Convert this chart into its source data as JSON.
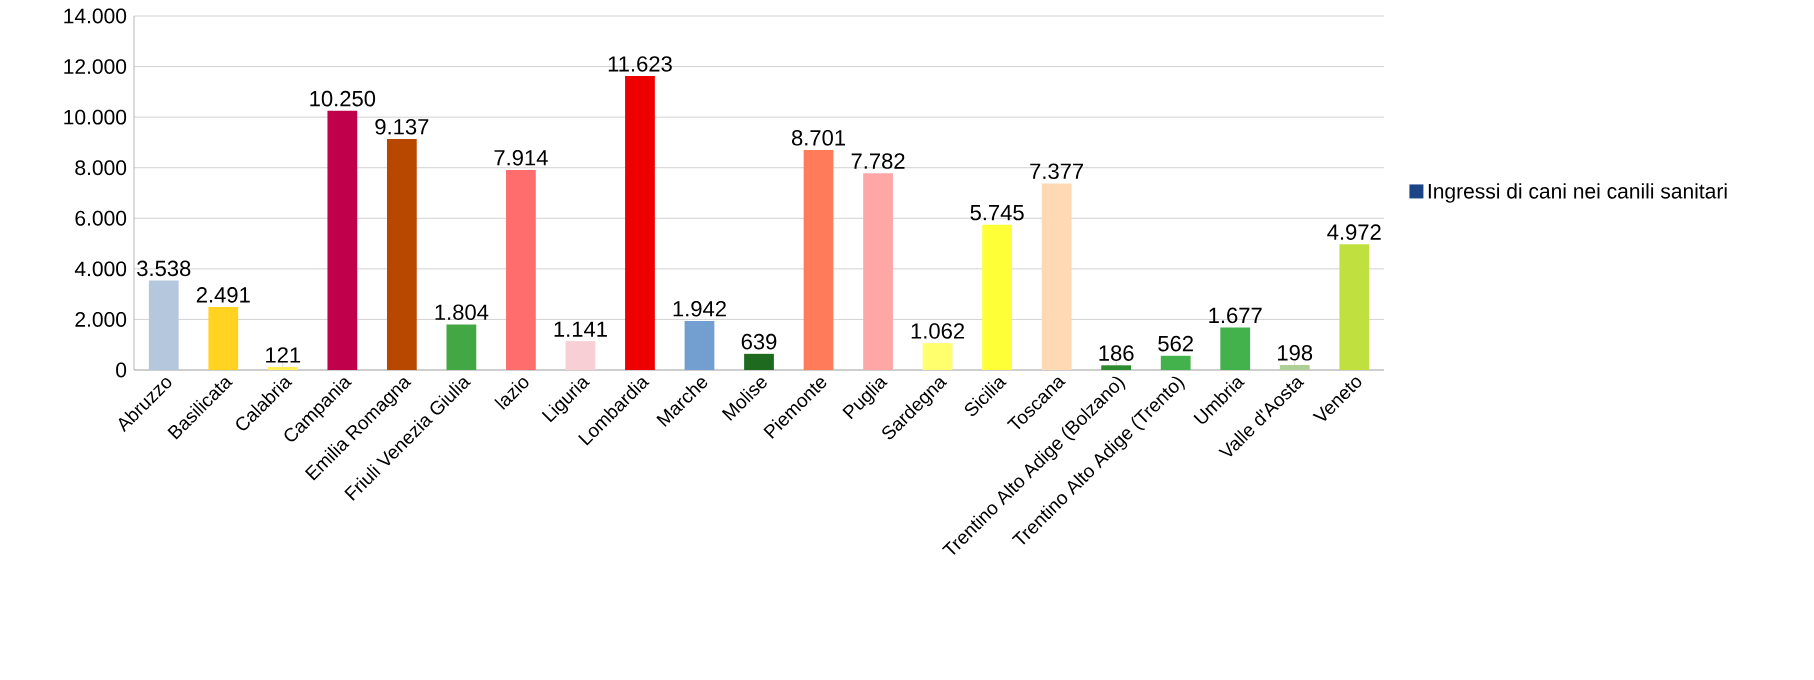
{
  "chart_data": {
    "type": "bar",
    "categories": [
      "Abruzzo",
      "Basilicata",
      "Calabria",
      "Campania",
      "Emilia Romagna",
      "Friuli Venezia Giulia",
      "lazio",
      "Liguria",
      "Lombardia",
      "Marche",
      "Molise",
      "Piemonte",
      "Puglia",
      "Sardegna",
      "Sicilia",
      "Toscana",
      "Trentino Alto Adige (Bolzano)",
      "Trentino Alto Adige (Trento)",
      "Umbria",
      "Valle d'Aosta",
      "Veneto"
    ],
    "series": [
      {
        "name": "Ingressi di cani nei canili sanitari",
        "color": "#1c4587",
        "colors": [
          "#b4c7dc",
          "#ffd320",
          "#ffee58",
          "#c0004b",
          "#b84700",
          "#43a843",
          "#ff6d6d",
          "#f7cfd5",
          "#ee0000",
          "#729fcf",
          "#1e6a1e",
          "#ff7b59",
          "#ffa6a6",
          "#ffff6d",
          "#ffff38",
          "#ffd8b4",
          "#2e8b2e",
          "#43b14c",
          "#43b14c",
          "#afd095",
          "#c0e040"
        ],
        "values": [
          3538,
          2491,
          121,
          10250,
          9137,
          1804,
          7914,
          1141,
          11623,
          1942,
          639,
          8701,
          7782,
          1062,
          5745,
          7377,
          186,
          562,
          1677,
          198,
          4972
        ],
        "value_labels": [
          "3.538",
          "2.491",
          "121",
          "10.250",
          "9.137",
          "1.804",
          "7.914",
          "1.141",
          "11.623",
          "1.942",
          "639",
          "8.701",
          "7.782",
          "1.062",
          "5.745",
          "7.377",
          "186",
          "562",
          "1.677",
          "198",
          "4.972"
        ]
      }
    ],
    "ylim": [
      0,
      14000
    ],
    "yticks": [
      {
        "value": 0,
        "label": "0"
      },
      {
        "value": 2000,
        "label": "2.000"
      },
      {
        "value": 4000,
        "label": "4.000"
      },
      {
        "value": 6000,
        "label": "6.000"
      },
      {
        "value": 8000,
        "label": "8.000"
      },
      {
        "value": 10000,
        "label": "10.000"
      },
      {
        "value": 12000,
        "label": "12.000"
      },
      {
        "value": 14000,
        "label": "14.000"
      }
    ],
    "grid": "y",
    "legend": "right"
  }
}
